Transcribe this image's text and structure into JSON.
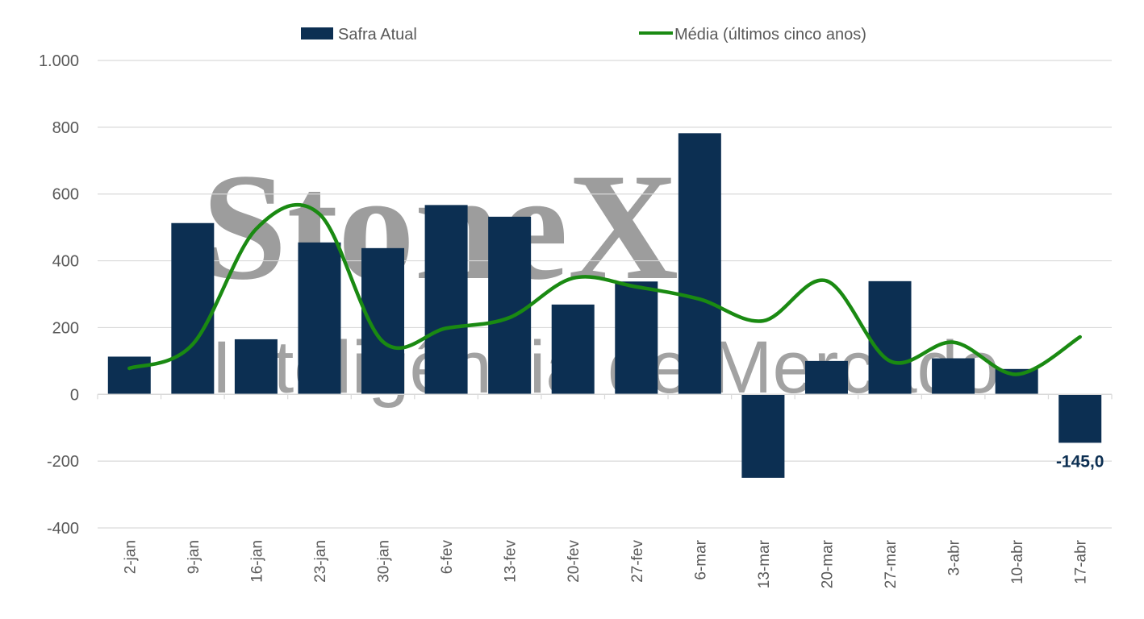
{
  "colors": {
    "bar": "#0c2f52",
    "line": "#1a8a12",
    "grid": "#d9d9d9",
    "text": "#595959",
    "watermark": "#8c8c8c"
  },
  "watermark": {
    "brand": "StoneX",
    "subtitle": "Inteligência de Mercado"
  },
  "chart_data": {
    "type": "bar",
    "categories": [
      "2-jan",
      "9-jan",
      "16-jan",
      "23-jan",
      "30-jan",
      "6-fev",
      "13-fev",
      "20-fev",
      "27-fev",
      "6-mar",
      "13-mar",
      "20-mar",
      "27-mar",
      "3-abr",
      "10-abr",
      "17-abr"
    ],
    "series": [
      {
        "name": "Safra Atual",
        "type": "bar",
        "values": [
          113,
          513,
          165,
          455,
          438,
          567,
          532,
          269,
          338,
          782,
          -250,
          100,
          339,
          108,
          76,
          -145
        ]
      },
      {
        "name": "Média (últimos cinco anos)",
        "type": "line",
        "smooth": true,
        "values": [
          78,
          150,
          495,
          540,
          158,
          198,
          230,
          348,
          322,
          285,
          220,
          340,
          100,
          156,
          60,
          172
        ]
      }
    ],
    "ylim": [
      -400,
      1000
    ],
    "yticks": [
      1000,
      800,
      600,
      400,
      200,
      0,
      -200,
      -400
    ],
    "ytick_labels": [
      "1.000",
      "800",
      "600",
      "400",
      "200",
      "0",
      "-200",
      "-400"
    ],
    "data_labels": [
      {
        "series": "Safra Atual",
        "index": 15,
        "text": "-145,0"
      }
    ],
    "title": "",
    "xlabel": "",
    "ylabel": "",
    "grid": true,
    "legend_position": "top"
  }
}
